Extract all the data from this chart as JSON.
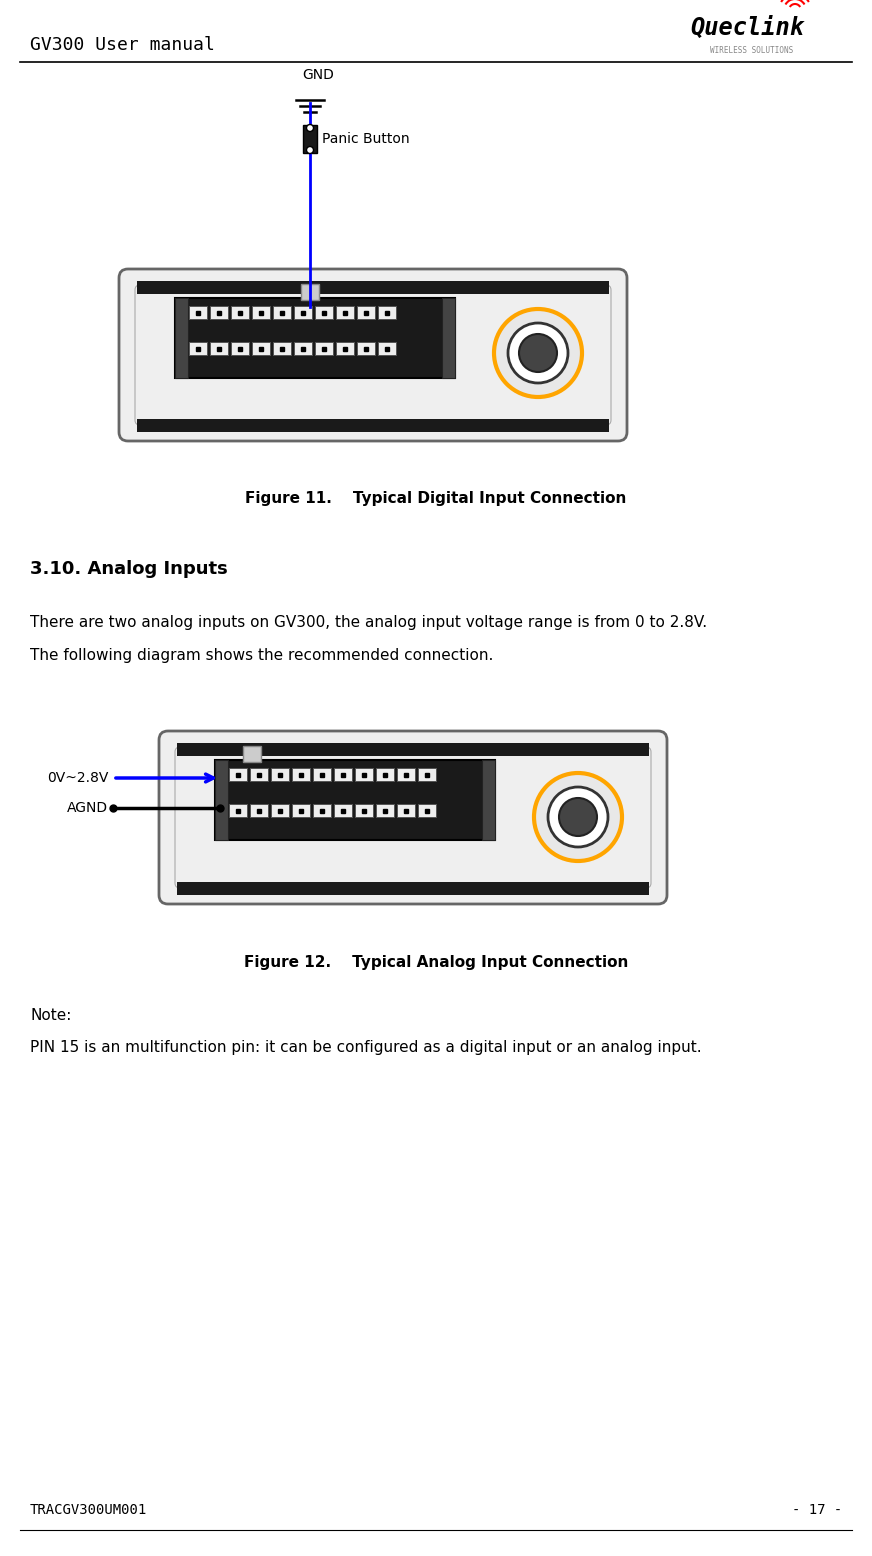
{
  "page_title_left": "GV300 User manual",
  "page_footer_left": "TRACGV300UM001",
  "page_footer_right": "- 17 -",
  "fig11_caption": "Figure 11.    Typical Digital Input Connection",
  "fig12_caption": "Figure 12.    Typical Analog Input Connection",
  "section_heading": "3.10. Analog Inputs",
  "body_text1": "There are two analog inputs on GV300, the analog input voltage range is from 0 to 2.8V.",
  "body_text2": "The following diagram shows the recommended connection.",
  "note_text1": "Note:",
  "note_text2": "PIN 15 is an multifunction pin: it can be configured as a digital input or an analog input.",
  "gnd_label": "GND",
  "panic_label": "Panic Button",
  "analog_label1": "0V~2.8V",
  "analog_label2": "AGND",
  "wire_color": "#0000FF",
  "device_fill": "#f0f0f0",
  "device_border": "#555555",
  "connector_fill": "#111111",
  "circle_orange": "#FFA500",
  "bg_color": "#ffffff",
  "logo_text": "Queclink",
  "logo_sub": "WIRELESS SOLUTIONS"
}
